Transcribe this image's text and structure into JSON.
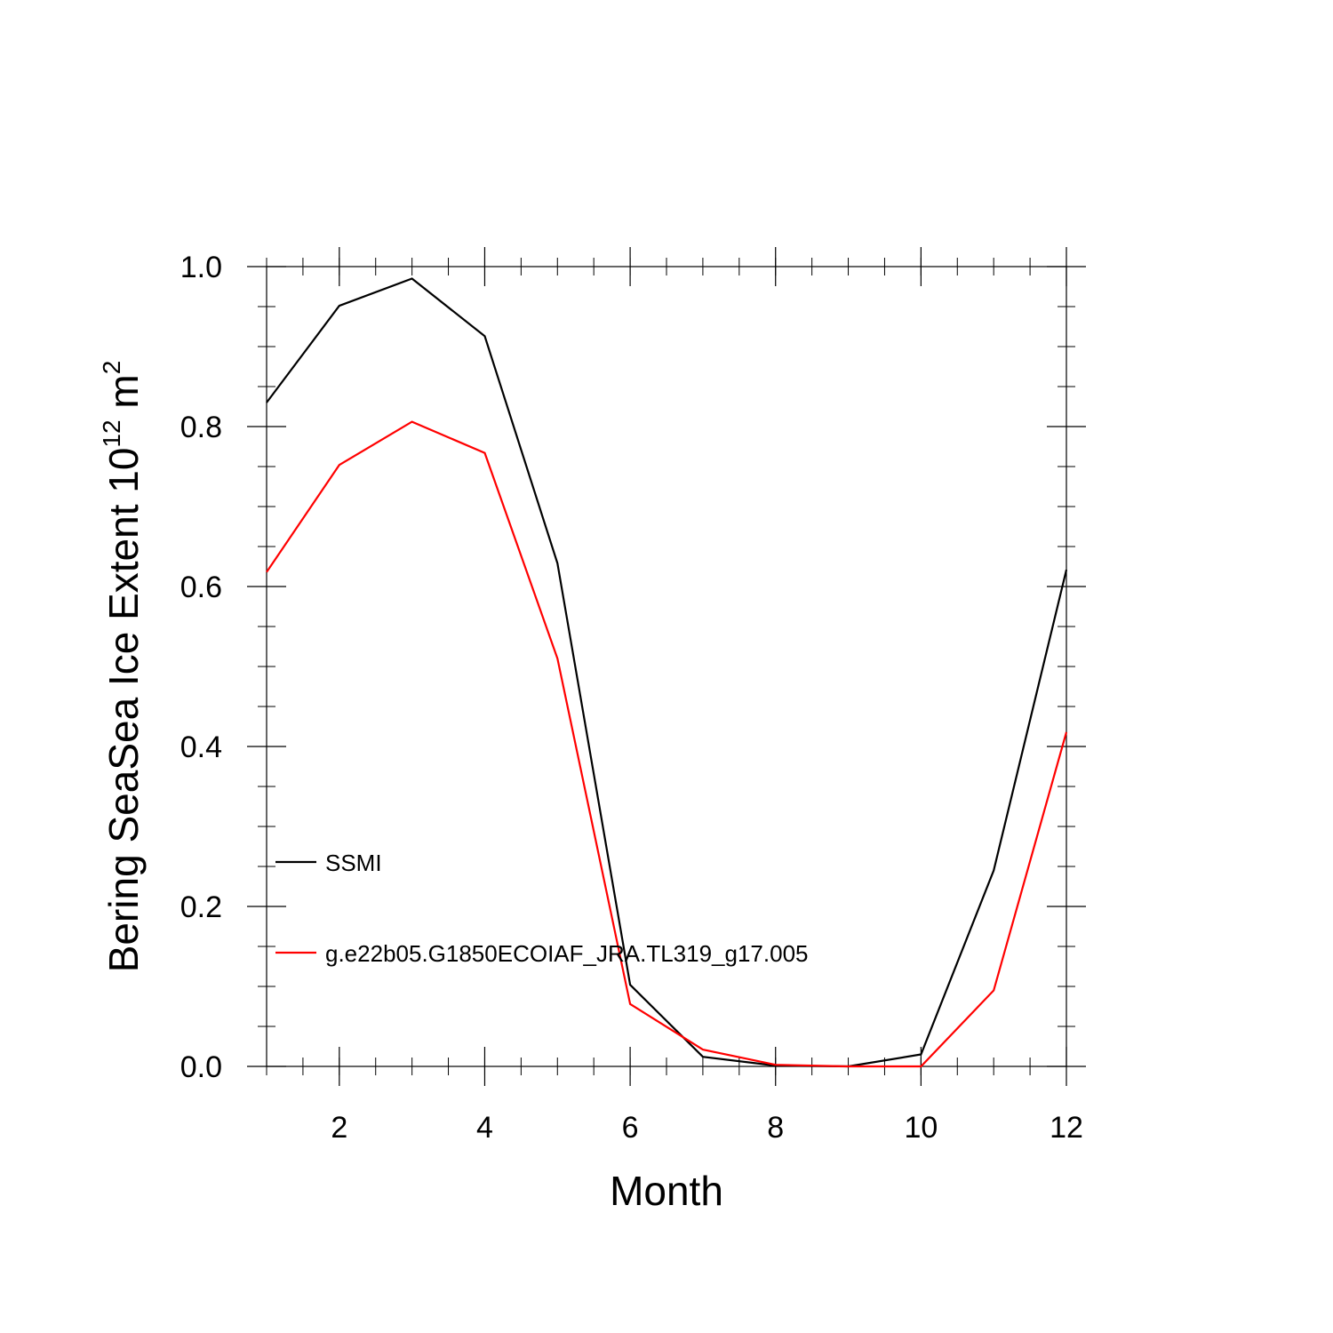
{
  "chart_data": {
    "type": "line",
    "title": "",
    "xlabel": "Month",
    "ylabel": {
      "prefix": "Bering SeaSea Ice Extent 10",
      "exponent": "12",
      "middle": " m",
      "unit_exponent": "2"
    },
    "xlim": [
      1,
      12
    ],
    "ylim": [
      0,
      1
    ],
    "x_ticks": [
      2,
      4,
      6,
      8,
      10,
      12
    ],
    "x_tick_labels": [
      "2",
      "4",
      "6",
      "8",
      "10",
      "12"
    ],
    "y_ticks": [
      0,
      0.2,
      0.4,
      0.6,
      0.8,
      1.0
    ],
    "y_tick_labels": [
      "0.0",
      "0.2",
      "0.4",
      "0.6",
      "0.8",
      "1.0"
    ],
    "grid": false,
    "legend_position": "left-middle",
    "x": [
      1,
      2,
      3,
      4,
      5,
      6,
      7,
      8,
      9,
      10,
      11,
      12
    ],
    "series": [
      {
        "name": "SSMI",
        "color": "#000000",
        "values": [
          0.83,
          0.951,
          0.985,
          0.913,
          0.629,
          0.102,
          0.012,
          0.001,
          0.0,
          0.015,
          0.245,
          0.621
        ]
      },
      {
        "name": "g.e22b05.G1850ECOIAF_JRA.TL319_g17.005",
        "color": "#ff0000",
        "values": [
          0.618,
          0.752,
          0.806,
          0.767,
          0.51,
          0.078,
          0.021,
          0.002,
          0.0,
          0.0,
          0.095,
          0.418
        ]
      }
    ]
  }
}
